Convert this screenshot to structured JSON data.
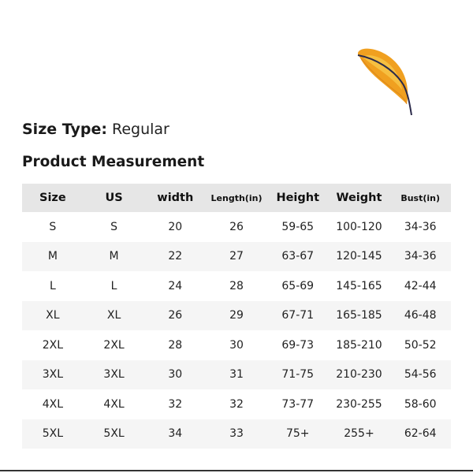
{
  "size_type": {
    "label": "Size Type:",
    "value": "Regular"
  },
  "section_title": "Product Measurement",
  "decoration": {
    "icon": "feather-icon",
    "colors": {
      "body": "#f0a020",
      "highlight": "#f7c74a",
      "edge": "#d9801a",
      "stem": "#2b2a4a"
    }
  },
  "colors": {
    "header_bg": "#e6e6e6",
    "stripe_bg": "#f5f5f5",
    "text": "#222222"
  },
  "table": {
    "headers": [
      "Size",
      "US",
      "width",
      "Length(in)",
      "Height",
      "Weight",
      "Bust(in)"
    ],
    "rows": [
      [
        "S",
        "S",
        "20",
        "26",
        "59-65",
        "100-120",
        "34-36"
      ],
      [
        "M",
        "M",
        "22",
        "27",
        "63-67",
        "120-145",
        "34-36"
      ],
      [
        "L",
        "L",
        "24",
        "28",
        "65-69",
        "145-165",
        "42-44"
      ],
      [
        "XL",
        "XL",
        "26",
        "29",
        "67-71",
        "165-185",
        "46-48"
      ],
      [
        "2XL",
        "2XL",
        "28",
        "30",
        "69-73",
        "185-210",
        "50-52"
      ],
      [
        "3XL",
        "3XL",
        "30",
        "31",
        "71-75",
        "210-230",
        "54-56"
      ],
      [
        "4XL",
        "4XL",
        "32",
        "32",
        "73-77",
        "230-255",
        "58-60"
      ],
      [
        "5XL",
        "5XL",
        "34",
        "33",
        "75+",
        "255+",
        "62-64"
      ]
    ]
  }
}
